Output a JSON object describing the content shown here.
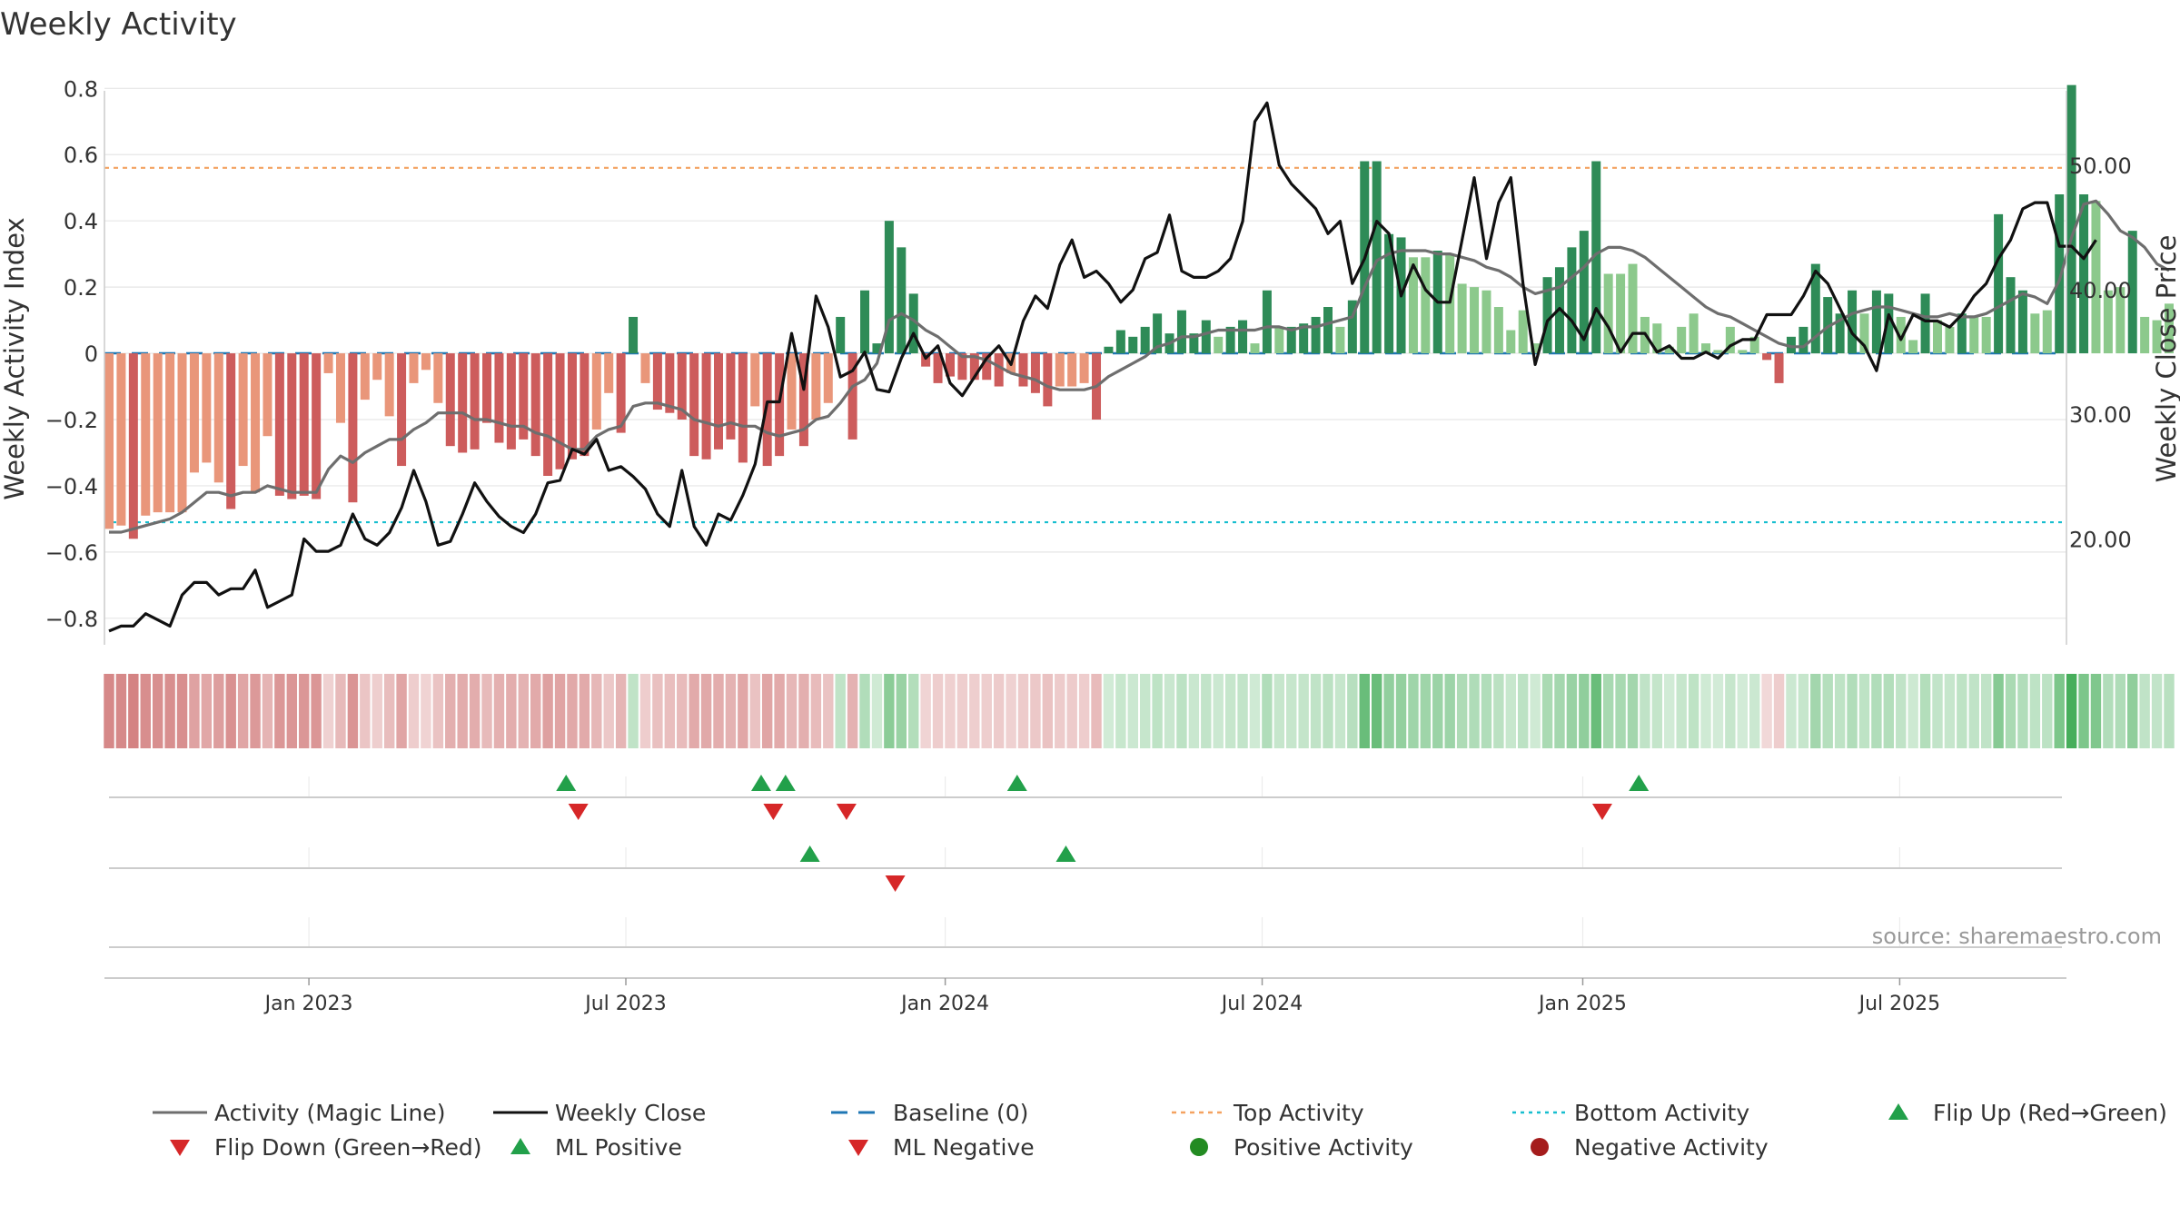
{
  "chart_data": {
    "type": "bar",
    "title": "Weekly Activity",
    "ylabel": "Weekly Activity Index",
    "y2label": "Weekly Close Price",
    "source": "source: sharemaestro.com",
    "ylim": [
      -0.88,
      0.82
    ],
    "y2lim": [
      11.5,
      56.7
    ],
    "yticks": [
      0.8,
      0.6,
      0.4,
      0.2,
      0,
      -0.2,
      -0.4,
      -0.6,
      -0.8
    ],
    "yticklabels": [
      "0.8",
      "0.6",
      "0.4",
      "0.2",
      "0",
      "−0.2",
      "−0.4",
      "−0.6",
      "−0.8"
    ],
    "y2ticks": [
      50,
      40,
      30,
      20
    ],
    "y2ticklabels": [
      "50.00",
      "40.00",
      "30.00",
      "20.00"
    ],
    "xticks": [
      {
        "week": 16.4,
        "label": "Jan 2023"
      },
      {
        "week": 42.4,
        "label": "Jul 2023"
      },
      {
        "week": 68.6,
        "label": "Jan 2024"
      },
      {
        "week": 94.6,
        "label": "Jul 2024"
      },
      {
        "week": 120.9,
        "label": "Jan 2025"
      },
      {
        "week": 146.9,
        "label": "Jul 2025"
      }
    ],
    "top_activity": 0.56,
    "bottom_activity": -0.51,
    "activity": [
      -0.53,
      -0.52,
      -0.56,
      -0.49,
      -0.48,
      -0.48,
      -0.48,
      -0.36,
      -0.33,
      -0.39,
      -0.47,
      -0.34,
      -0.42,
      -0.25,
      -0.43,
      -0.44,
      -0.43,
      -0.44,
      -0.06,
      -0.21,
      -0.45,
      -0.14,
      -0.08,
      -0.19,
      -0.34,
      -0.09,
      -0.05,
      -0.15,
      -0.28,
      -0.3,
      -0.29,
      -0.21,
      -0.27,
      -0.29,
      -0.26,
      -0.31,
      -0.37,
      -0.35,
      -0.32,
      -0.31,
      -0.23,
      -0.12,
      -0.24,
      0.11,
      -0.09,
      -0.17,
      -0.18,
      -0.2,
      -0.31,
      -0.32,
      -0.29,
      -0.26,
      -0.33,
      -0.16,
      -0.34,
      -0.31,
      -0.23,
      -0.28,
      -0.2,
      -0.15,
      0.11,
      -0.26,
      0.19,
      0.03,
      0.4,
      0.32,
      0.18,
      -0.04,
      -0.09,
      -0.07,
      -0.08,
      -0.08,
      -0.08,
      -0.1,
      -0.06,
      -0.1,
      -0.12,
      -0.16,
      -0.1,
      -0.1,
      -0.09,
      -0.2,
      0.02,
      0.07,
      0.05,
      0.08,
      0.12,
      0.06,
      0.13,
      0.06,
      0.1,
      0.05,
      0.08,
      0.1,
      0.03,
      0.19,
      0.08,
      0.08,
      0.09,
      0.11,
      0.14,
      0.08,
      0.16,
      0.58,
      0.58,
      0.36,
      0.35,
      0.29,
      0.29,
      0.31,
      0.3,
      0.21,
      0.2,
      0.19,
      0.14,
      0.07,
      0.13,
      0.03,
      0.23,
      0.26,
      0.32,
      0.37,
      0.58,
      0.24,
      0.24,
      0.27,
      0.11,
      0.09,
      0.02,
      0.08,
      0.12,
      0.03,
      0.01,
      0.08,
      0.01,
      0.05,
      -0.02,
      -0.09,
      0.05,
      0.08,
      0.27,
      0.17,
      0.12,
      0.19,
      0.12,
      0.19,
      0.18,
      0.11,
      0.04,
      0.18,
      0.1,
      0.08,
      0.12,
      0.11,
      0.11,
      0.42,
      0.23,
      0.19,
      0.12,
      0.13,
      0.48,
      0.81,
      0.48,
      0.46,
      0.19,
      0.2,
      0.37,
      0.11,
      0.1,
      0.15
    ],
    "magic_line": [
      -0.54,
      -0.54,
      -0.53,
      -0.52,
      -0.51,
      -0.5,
      -0.48,
      -0.45,
      -0.42,
      -0.42,
      -0.43,
      -0.42,
      -0.42,
      -0.4,
      -0.41,
      -0.42,
      -0.42,
      -0.42,
      -0.35,
      -0.31,
      -0.33,
      -0.3,
      -0.28,
      -0.26,
      -0.26,
      -0.23,
      -0.21,
      -0.18,
      -0.18,
      -0.18,
      -0.2,
      -0.2,
      -0.21,
      -0.22,
      -0.22,
      -0.24,
      -0.25,
      -0.27,
      -0.29,
      -0.29,
      -0.25,
      -0.23,
      -0.22,
      -0.16,
      -0.15,
      -0.15,
      -0.16,
      -0.17,
      -0.2,
      -0.21,
      -0.22,
      -0.21,
      -0.22,
      -0.22,
      -0.24,
      -0.25,
      -0.24,
      -0.23,
      -0.2,
      -0.19,
      -0.15,
      -0.1,
      -0.08,
      -0.03,
      0.1,
      0.12,
      0.1,
      0.07,
      0.05,
      0.02,
      -0.01,
      -0.01,
      -0.02,
      -0.04,
      -0.06,
      -0.07,
      -0.08,
      -0.1,
      -0.11,
      -0.11,
      -0.11,
      -0.1,
      -0.07,
      -0.05,
      -0.03,
      -0.01,
      0.02,
      0.03,
      0.05,
      0.05,
      0.06,
      0.07,
      0.07,
      0.07,
      0.07,
      0.08,
      0.08,
      0.07,
      0.08,
      0.08,
      0.09,
      0.1,
      0.11,
      0.2,
      0.28,
      0.3,
      0.31,
      0.31,
      0.31,
      0.3,
      0.3,
      0.29,
      0.28,
      0.26,
      0.25,
      0.23,
      0.2,
      0.18,
      0.19,
      0.2,
      0.23,
      0.26,
      0.3,
      0.32,
      0.32,
      0.31,
      0.29,
      0.26,
      0.23,
      0.2,
      0.17,
      0.14,
      0.12,
      0.11,
      0.09,
      0.07,
      0.05,
      0.03,
      0.02,
      0.02,
      0.05,
      0.08,
      0.1,
      0.12,
      0.13,
      0.14,
      0.14,
      0.13,
      0.12,
      0.11,
      0.11,
      0.12,
      0.11,
      0.11,
      0.12,
      0.14,
      0.16,
      0.18,
      0.17,
      0.15,
      0.22,
      0.35,
      0.45,
      0.46,
      0.42,
      0.37,
      0.35,
      0.32,
      0.27,
      0.25
    ],
    "weekly_close": [
      12.6,
      13.0,
      13.0,
      14.0,
      13.5,
      13.0,
      15.5,
      16.5,
      16.5,
      15.5,
      16.0,
      16.0,
      17.5,
      14.5,
      15.0,
      15.5,
      20.0,
      19.0,
      19.0,
      19.5,
      22.0,
      20.0,
      19.5,
      20.5,
      22.5,
      25.5,
      23.0,
      19.5,
      19.8,
      22.0,
      24.5,
      23.0,
      21.8,
      21.0,
      20.5,
      22.0,
      24.5,
      24.7,
      27.2,
      26.8,
      28.0,
      25.5,
      25.8,
      25.0,
      24.0,
      22.0,
      21.0,
      25.5,
      21.0,
      19.5,
      22.0,
      21.5,
      23.5,
      26.0,
      31.0,
      31.0,
      36.5,
      32.0,
      39.5,
      37.0,
      33.0,
      33.5,
      35.0,
      32.0,
      31.8,
      34.5,
      36.5,
      34.5,
      35.5,
      32.5,
      31.5,
      33.0,
      34.5,
      35.5,
      34.0,
      37.5,
      39.5,
      38.5,
      42.0,
      44.0,
      41.0,
      41.5,
      40.5,
      39.0,
      40.0,
      42.5,
      43.0,
      46.0,
      41.5,
      41.0,
      41.0,
      41.5,
      42.5,
      45.5,
      53.5,
      55.0,
      50.0,
      48.5,
      47.5,
      46.5,
      44.5,
      45.5,
      40.5,
      42.5,
      45.5,
      44.5,
      39.5,
      42.0,
      40.0,
      39.0,
      39.0,
      44.0,
      49.0,
      42.5,
      47.0,
      49.0,
      40.5,
      34.0,
      37.5,
      38.5,
      37.5,
      36.0,
      38.5,
      37.0,
      35.0,
      36.5,
      36.5,
      35.0,
      35.5,
      34.5,
      34.5,
      35.0,
      34.5,
      35.5,
      36.0,
      36.0,
      38.0,
      38.0,
      38.0,
      39.5,
      41.5,
      40.5,
      38.5,
      36.5,
      35.5,
      33.5,
      38.0,
      36.0,
      38.0,
      37.5,
      37.5,
      37.0,
      38.0,
      39.5,
      40.5,
      42.5,
      44.0,
      46.5,
      47.0,
      47.0,
      43.5,
      43.5,
      42.5,
      44.0
    ],
    "heat_strip": [
      -0.53,
      -0.52,
      -0.56,
      -0.49,
      -0.48,
      -0.48,
      -0.48,
      -0.36,
      -0.33,
      -0.39,
      -0.47,
      -0.34,
      -0.42,
      -0.25,
      -0.43,
      -0.44,
      -0.43,
      -0.44,
      -0.06,
      -0.21,
      -0.45,
      -0.14,
      -0.08,
      -0.19,
      -0.34,
      -0.09,
      -0.05,
      -0.15,
      -0.28,
      -0.3,
      -0.29,
      -0.21,
      -0.27,
      -0.29,
      -0.26,
      -0.31,
      -0.37,
      -0.35,
      -0.32,
      -0.31,
      -0.23,
      -0.12,
      -0.24,
      0.11,
      -0.09,
      -0.17,
      -0.18,
      -0.2,
      -0.31,
      -0.32,
      -0.29,
      -0.26,
      -0.33,
      -0.16,
      -0.34,
      -0.31,
      -0.23,
      -0.28,
      -0.2,
      -0.15,
      0.11,
      -0.26,
      0.19,
      0.03,
      0.4,
      0.32,
      0.18,
      -0.04,
      -0.09,
      -0.07,
      -0.08,
      -0.08,
      -0.08,
      -0.1,
      -0.06,
      -0.1,
      -0.12,
      -0.16,
      -0.1,
      -0.1,
      -0.09,
      -0.2,
      0.02,
      0.07,
      0.05,
      0.08,
      0.12,
      0.06,
      0.13,
      0.06,
      0.1,
      0.05,
      0.08,
      0.1,
      0.03,
      0.19,
      0.08,
      0.08,
      0.09,
      0.11,
      0.14,
      0.08,
      0.16,
      0.58,
      0.58,
      0.36,
      0.35,
      0.29,
      0.29,
      0.31,
      0.3,
      0.21,
      0.2,
      0.19,
      0.14,
      0.07,
      0.13,
      0.03,
      0.23,
      0.26,
      0.32,
      0.37,
      0.58,
      0.24,
      0.24,
      0.27,
      0.11,
      0.09,
      0.02,
      0.08,
      0.12,
      0.03,
      0.01,
      0.08,
      0.01,
      0.05,
      -0.02,
      -0.09,
      0.05,
      0.08,
      0.27,
      0.17,
      0.12,
      0.19,
      0.12,
      0.19,
      0.18,
      0.11,
      0.04,
      0.18,
      0.1,
      0.08,
      0.12,
      0.11,
      0.11,
      0.42,
      0.23,
      0.19,
      0.12,
      0.13,
      0.48,
      0.81,
      0.48,
      0.46,
      0.19,
      0.2,
      0.37,
      0.11,
      0.1,
      0.15
    ],
    "flip_up_weeks": [
      37.5,
      53.5,
      55.5,
      74.5,
      125.5
    ],
    "flip_down_weeks": [
      38.5,
      54.5,
      60.5,
      122.5
    ],
    "ml_positive_weeks": [
      57.5,
      78.5
    ],
    "ml_negative_weeks": [
      64.5
    ],
    "legend": [
      {
        "key": "magic",
        "label": "Activity (Magic Line)"
      },
      {
        "key": "close",
        "label": "Weekly Close"
      },
      {
        "key": "baseline",
        "label": "Baseline (0)"
      },
      {
        "key": "top",
        "label": "Top Activity"
      },
      {
        "key": "bottom",
        "label": "Bottom Activity"
      },
      {
        "key": "flipup",
        "label": "Flip Up (Red→Green)"
      },
      {
        "key": "flipdown",
        "label": "Flip Down (Green→Red)"
      },
      {
        "key": "mlpos",
        "label": "ML Positive"
      },
      {
        "key": "mlneg",
        "label": "ML Negative"
      },
      {
        "key": "posact",
        "label": "Positive Activity"
      },
      {
        "key": "negact",
        "label": "Negative Activity"
      }
    ],
    "colors": {
      "pos_dark": "#2e8b57",
      "pos_light": "#8cc98c",
      "neg_dark": "#cd5c5c",
      "neg_light": "#e9967a",
      "magic": "#6e6e6e",
      "close": "#111111",
      "baseline": "#1f77b4",
      "top": "#f4a261",
      "bottom": "#17becf",
      "up": "#22a04a",
      "down": "#d62728",
      "pos_dot": "#238b22",
      "neg_dot": "#a51c1c",
      "grid": "#e6e6e6",
      "axis": "#cccccc"
    }
  }
}
